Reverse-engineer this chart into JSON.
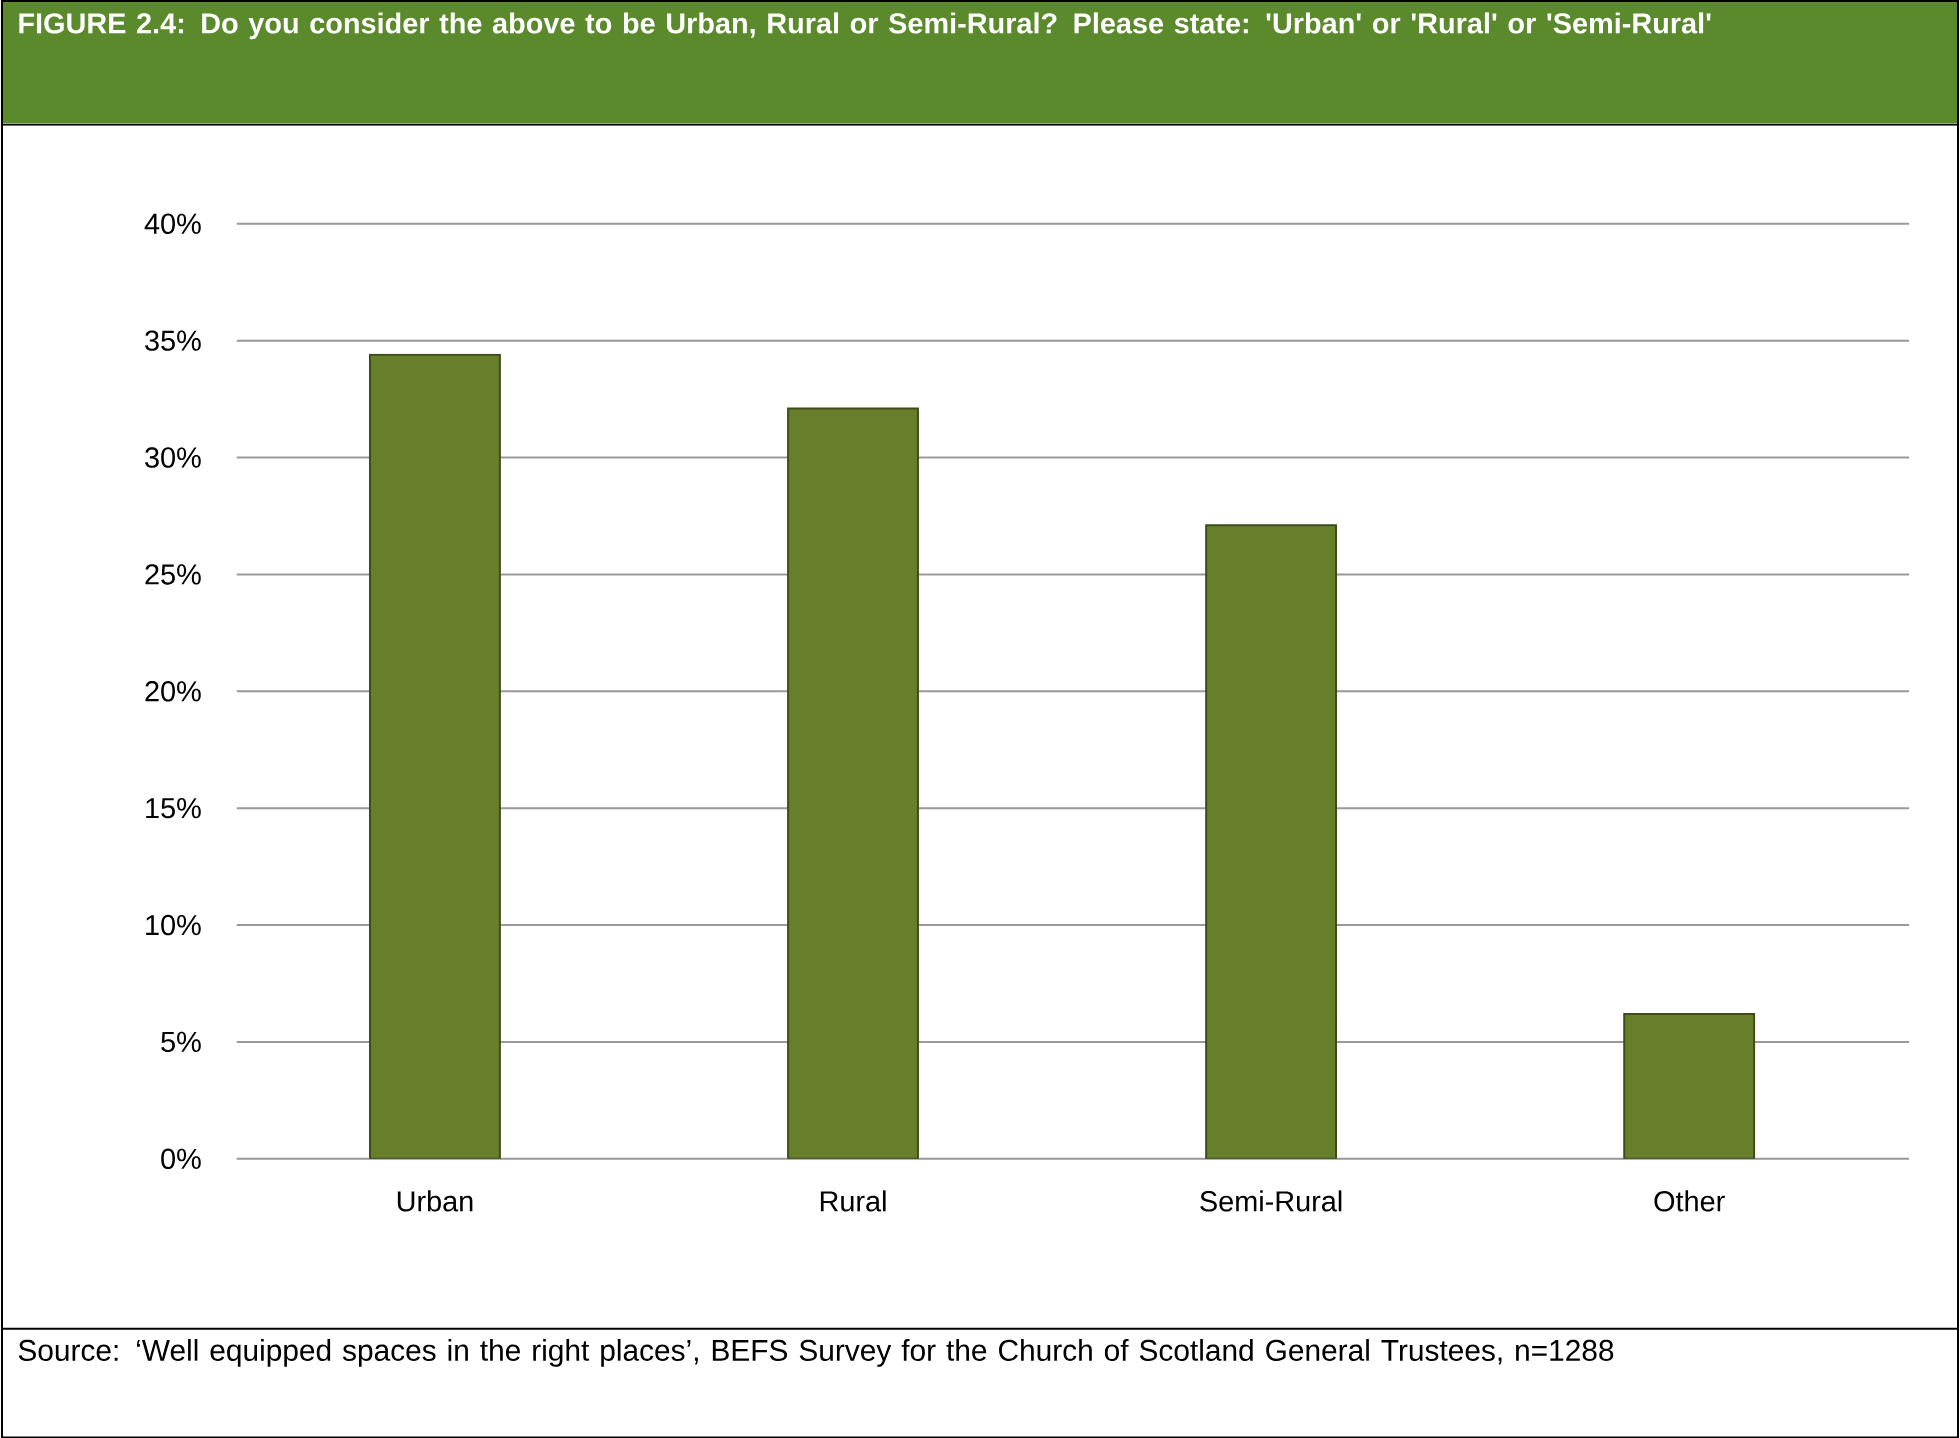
{
  "chart_data": {
    "type": "bar",
    "title": "FIGURE 2.4: Do you consider the above to be Urban, Rural or Semi-Rural? Please state: 'Urban' or 'Rural' or 'Semi-Rural'",
    "categories": [
      "Urban",
      "Rural",
      "Semi-Rural",
      "Other"
    ],
    "values": [
      34.4,
      32.1,
      27.1,
      6.2
    ],
    "color": "#677f2b",
    "ylim": [
      0,
      40
    ],
    "yticks": [
      {
        "value": 0,
        "label": "0%"
      },
      {
        "value": 5,
        "label": "5%"
      },
      {
        "value": 10,
        "label": "10%"
      },
      {
        "value": 15,
        "label": "15%"
      },
      {
        "value": 20,
        "label": "20%"
      },
      {
        "value": 25,
        "label": "25%"
      },
      {
        "value": 30,
        "label": "30%"
      },
      {
        "value": 35,
        "label": "35%"
      },
      {
        "value": 40,
        "label": "40%"
      }
    ],
    "grid": "y",
    "annotations": [
      "Source: ‘Well equipped spaces in the right places’, BEFS Survey for the Church of Scotland General Trustees, n=1288"
    ]
  }
}
